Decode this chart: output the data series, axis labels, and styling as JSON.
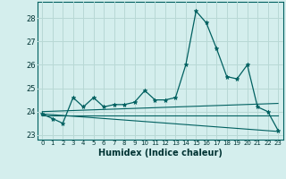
{
  "xlabel": "Humidex (Indice chaleur)",
  "background_color": "#d4eeed",
  "grid_color": "#b8d8d5",
  "line_color": "#006060",
  "xlim": [
    -0.5,
    23.5
  ],
  "ylim": [
    22.8,
    28.7
  ],
  "yticks": [
    23,
    24,
    25,
    26,
    27,
    28
  ],
  "xticks": [
    0,
    1,
    2,
    3,
    4,
    5,
    6,
    7,
    8,
    9,
    10,
    11,
    12,
    13,
    14,
    15,
    16,
    17,
    18,
    19,
    20,
    21,
    22,
    23
  ],
  "series1_x": [
    0,
    1,
    2,
    3,
    4,
    5,
    6,
    7,
    8,
    9,
    10,
    11,
    12,
    13,
    14,
    15,
    16,
    17,
    18,
    19,
    20,
    21,
    22,
    23
  ],
  "series1_y": [
    23.9,
    23.7,
    23.5,
    24.6,
    24.2,
    24.6,
    24.2,
    24.3,
    24.3,
    24.4,
    24.9,
    24.5,
    24.5,
    24.6,
    26.0,
    28.3,
    27.8,
    26.7,
    25.5,
    25.4,
    26.0,
    24.2,
    24.0,
    23.2
  ],
  "series2_x": [
    0,
    23
  ],
  "series2_y": [
    23.9,
    23.15
  ],
  "series3_x": [
    0,
    23
  ],
  "series3_y": [
    23.85,
    23.85
  ],
  "series4_x": [
    0,
    23
  ],
  "series4_y": [
    24.0,
    24.35
  ]
}
